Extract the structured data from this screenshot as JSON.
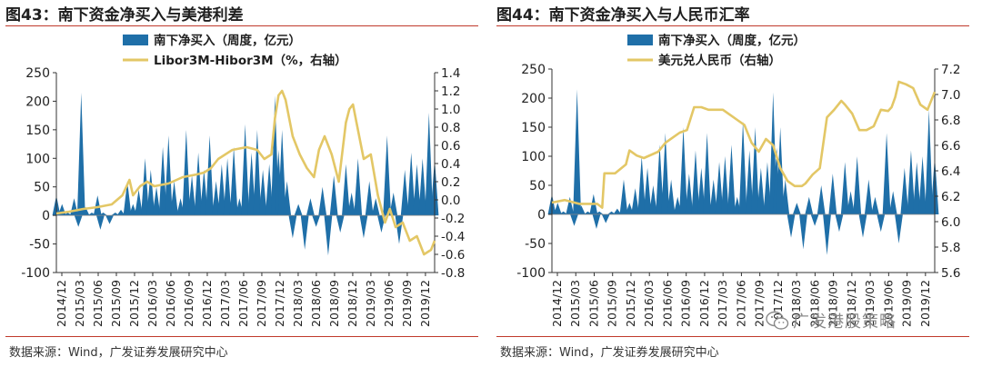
{
  "watermark": {
    "text": "广发港股策略",
    "icon": "wechat-icon"
  },
  "colors": {
    "bar": "#1F6FA8",
    "line": "#E3C766",
    "title_rule": "#C0392B",
    "axis": "#333333"
  },
  "chart_data": [
    {
      "type": "bar+line",
      "title": "图43：南下资金净买入与美港利差",
      "source": "数据来源：Wind，广发证券发展研究中心",
      "x_ticks": [
        "2014/12",
        "2015/03",
        "2015/06",
        "2015/09",
        "2015/12",
        "2016/03",
        "2016/06",
        "2016/09",
        "2016/12",
        "2017/03",
        "2017/06",
        "2017/09",
        "2017/12",
        "2018/03",
        "2018/06",
        "2018/09",
        "2018/12",
        "2019/03",
        "2019/06",
        "2019/09",
        "2019/12"
      ],
      "x_range": [
        2014.92,
        2020.25
      ],
      "y_left": {
        "min": -100,
        "max": 250,
        "ticks": [
          -100,
          -50,
          0,
          50,
          100,
          150,
          200,
          250
        ]
      },
      "y_right": {
        "min": -0.8,
        "max": 1.4,
        "ticks": [
          "-0.8",
          "-0.6",
          "-0.4",
          "-0.2",
          "0.0",
          "0.2",
          "0.4",
          "0.6",
          "0.8",
          "1.0",
          "1.2",
          "1.4"
        ]
      },
      "legend": [
        {
          "name": "南下净买入（周度，亿元）",
          "kind": "bar"
        },
        {
          "name": "Libor3M-Hibor3M（%，右轴）",
          "kind": "line"
        }
      ],
      "bar_series": {
        "name": "南下净买入（周度，亿元）",
        "x": [
          2014.92,
          2015.0,
          2015.08,
          2015.17,
          2015.23,
          2015.27,
          2015.33,
          2015.42,
          2015.5,
          2015.54,
          2015.58,
          2015.67,
          2015.75,
          2015.83,
          2015.92,
          2016.0,
          2016.08,
          2016.17,
          2016.25,
          2016.33,
          2016.42,
          2016.5,
          2016.58,
          2016.67,
          2016.75,
          2016.83,
          2016.92,
          2017.0,
          2017.08,
          2017.17,
          2017.25,
          2017.33,
          2017.42,
          2017.5,
          2017.58,
          2017.67,
          2017.75,
          2017.83,
          2017.92,
          2018.0,
          2018.05,
          2018.1,
          2018.17,
          2018.25,
          2018.33,
          2018.42,
          2018.5,
          2018.58,
          2018.67,
          2018.75,
          2018.83,
          2018.92,
          2019.0,
          2019.08,
          2019.17,
          2019.25,
          2019.33,
          2019.42,
          2019.5,
          2019.58,
          2019.67,
          2019.75,
          2019.83,
          2019.92,
          2020.0,
          2020.08,
          2020.17,
          2020.25
        ],
        "values": [
          35,
          20,
          5,
          30,
          -20,
          215,
          15,
          5,
          35,
          -25,
          5,
          -15,
          5,
          10,
          60,
          20,
          45,
          100,
          80,
          50,
          120,
          140,
          60,
          30,
          150,
          70,
          110,
          80,
          140,
          60,
          90,
          100,
          120,
          30,
          160,
          110,
          150,
          80,
          90,
          210,
          115,
          150,
          60,
          -40,
          20,
          -60,
          30,
          -20,
          50,
          -70,
          70,
          -30,
          90,
          40,
          100,
          -40,
          60,
          30,
          -30,
          140,
          40,
          -50,
          80,
          110,
          90,
          100,
          180,
          100
        ]
      },
      "line_series": {
        "name": "Libor3M-Hibor3M（%，右轴）",
        "x": [
          2014.92,
          2015.1,
          2015.3,
          2015.5,
          2015.7,
          2015.85,
          2015.95,
          2016.0,
          2016.1,
          2016.2,
          2016.3,
          2016.5,
          2016.7,
          2016.9,
          2017.0,
          2017.1,
          2017.2,
          2017.4,
          2017.6,
          2017.75,
          2017.85,
          2017.95,
          2018.0,
          2018.05,
          2018.1,
          2018.15,
          2018.2,
          2018.25,
          2018.35,
          2018.45,
          2018.55,
          2018.62,
          2018.7,
          2018.8,
          2018.9,
          2019.0,
          2019.05,
          2019.1,
          2019.15,
          2019.25,
          2019.35,
          2019.45,
          2019.55,
          2019.62,
          2019.7,
          2019.8,
          2019.9,
          2020.0,
          2020.1,
          2020.2,
          2020.25
        ],
        "values": [
          -0.15,
          -0.13,
          -0.1,
          -0.08,
          -0.05,
          0.05,
          0.22,
          0.05,
          0.15,
          0.2,
          0.15,
          0.18,
          0.25,
          0.28,
          0.3,
          0.35,
          0.45,
          0.55,
          0.58,
          0.55,
          0.45,
          0.5,
          0.9,
          1.15,
          1.2,
          1.1,
          0.9,
          0.7,
          0.5,
          0.35,
          0.25,
          0.55,
          0.7,
          0.5,
          0.2,
          0.85,
          1.0,
          1.05,
          0.85,
          0.45,
          0.5,
          0.05,
          -0.25,
          -0.1,
          -0.3,
          -0.25,
          -0.45,
          -0.4,
          -0.6,
          -0.55,
          -0.45
        ]
      }
    },
    {
      "type": "bar+line",
      "title": "图44：南下资金净买入与人民币汇率",
      "source": "数据来源：Wind，广发证券发展研究中心",
      "x_ticks": [
        "2014/12",
        "2015/03",
        "2015/06",
        "2015/09",
        "2015/12",
        "2016/03",
        "2016/06",
        "2016/09",
        "2016/12",
        "2017/03",
        "2017/06",
        "2017/09",
        "2017/12",
        "2018/03",
        "2018/06",
        "2018/09",
        "2018/12",
        "2019/03",
        "2019/06",
        "2019/09",
        "2019/12"
      ],
      "x_range": [
        2014.92,
        2020.25
      ],
      "y_left": {
        "min": -100,
        "max": 250,
        "ticks": [
          -100,
          -50,
          0,
          50,
          100,
          150,
          200,
          250
        ]
      },
      "y_right": {
        "min": 5.6,
        "max": 7.2,
        "ticks": [
          "5.6",
          "5.8",
          "6.0",
          "6.2",
          "6.4",
          "6.6",
          "6.8",
          "7.0",
          "7.2"
        ]
      },
      "legend": [
        {
          "name": "南下净买入（周度，亿元）",
          "kind": "bar"
        },
        {
          "name": "美元兑人民币（右轴）",
          "kind": "line"
        }
      ],
      "bar_series": {
        "name": "南下净买入（周度，亿元）",
        "x": [
          2014.92,
          2015.0,
          2015.08,
          2015.17,
          2015.23,
          2015.27,
          2015.33,
          2015.42,
          2015.5,
          2015.54,
          2015.58,
          2015.67,
          2015.75,
          2015.83,
          2015.92,
          2016.0,
          2016.08,
          2016.17,
          2016.25,
          2016.33,
          2016.42,
          2016.5,
          2016.58,
          2016.67,
          2016.75,
          2016.83,
          2016.92,
          2017.0,
          2017.08,
          2017.17,
          2017.25,
          2017.33,
          2017.42,
          2017.5,
          2017.58,
          2017.67,
          2017.75,
          2017.83,
          2017.92,
          2018.0,
          2018.05,
          2018.1,
          2018.17,
          2018.25,
          2018.33,
          2018.42,
          2018.5,
          2018.58,
          2018.67,
          2018.75,
          2018.83,
          2018.92,
          2019.0,
          2019.08,
          2019.17,
          2019.25,
          2019.33,
          2019.42,
          2019.5,
          2019.58,
          2019.67,
          2019.75,
          2019.83,
          2019.92,
          2020.0,
          2020.08,
          2020.17,
          2020.25
        ],
        "values": [
          35,
          20,
          5,
          30,
          -20,
          215,
          15,
          5,
          35,
          -25,
          5,
          -15,
          5,
          10,
          60,
          20,
          45,
          100,
          80,
          50,
          120,
          140,
          60,
          30,
          150,
          70,
          110,
          80,
          140,
          60,
          90,
          100,
          120,
          30,
          160,
          110,
          150,
          80,
          90,
          210,
          115,
          150,
          60,
          -40,
          20,
          -60,
          30,
          -20,
          50,
          -70,
          70,
          -30,
          90,
          40,
          100,
          -40,
          60,
          30,
          -30,
          140,
          40,
          -50,
          80,
          110,
          90,
          100,
          180,
          100
        ]
      },
      "line_series": {
        "name": "美元兑人民币（右轴）",
        "x": [
          2014.92,
          2015.1,
          2015.3,
          2015.55,
          2015.62,
          2015.65,
          2015.8,
          2015.95,
          2016.0,
          2016.1,
          2016.2,
          2016.4,
          2016.5,
          2016.6,
          2016.7,
          2016.8,
          2016.9,
          2017.0,
          2017.1,
          2017.3,
          2017.5,
          2017.6,
          2017.7,
          2017.8,
          2017.9,
          2018.0,
          2018.1,
          2018.2,
          2018.3,
          2018.4,
          2018.45,
          2018.55,
          2018.65,
          2018.75,
          2018.85,
          2018.95,
          2019.0,
          2019.1,
          2019.2,
          2019.3,
          2019.4,
          2019.5,
          2019.6,
          2019.65,
          2019.7,
          2019.75,
          2019.85,
          2019.95,
          2020.05,
          2020.15,
          2020.25
        ],
        "values": [
          6.15,
          6.17,
          6.14,
          6.14,
          6.11,
          6.38,
          6.38,
          6.45,
          6.56,
          6.52,
          6.5,
          6.55,
          6.62,
          6.66,
          6.7,
          6.72,
          6.9,
          6.9,
          6.88,
          6.88,
          6.8,
          6.76,
          6.62,
          6.55,
          6.65,
          6.6,
          6.42,
          6.32,
          6.28,
          6.28,
          6.3,
          6.37,
          6.42,
          6.82,
          6.88,
          6.95,
          6.92,
          6.85,
          6.72,
          6.72,
          6.75,
          6.88,
          6.87,
          6.9,
          6.98,
          7.1,
          7.08,
          7.05,
          6.92,
          6.88,
          7.02
        ]
      }
    }
  ]
}
